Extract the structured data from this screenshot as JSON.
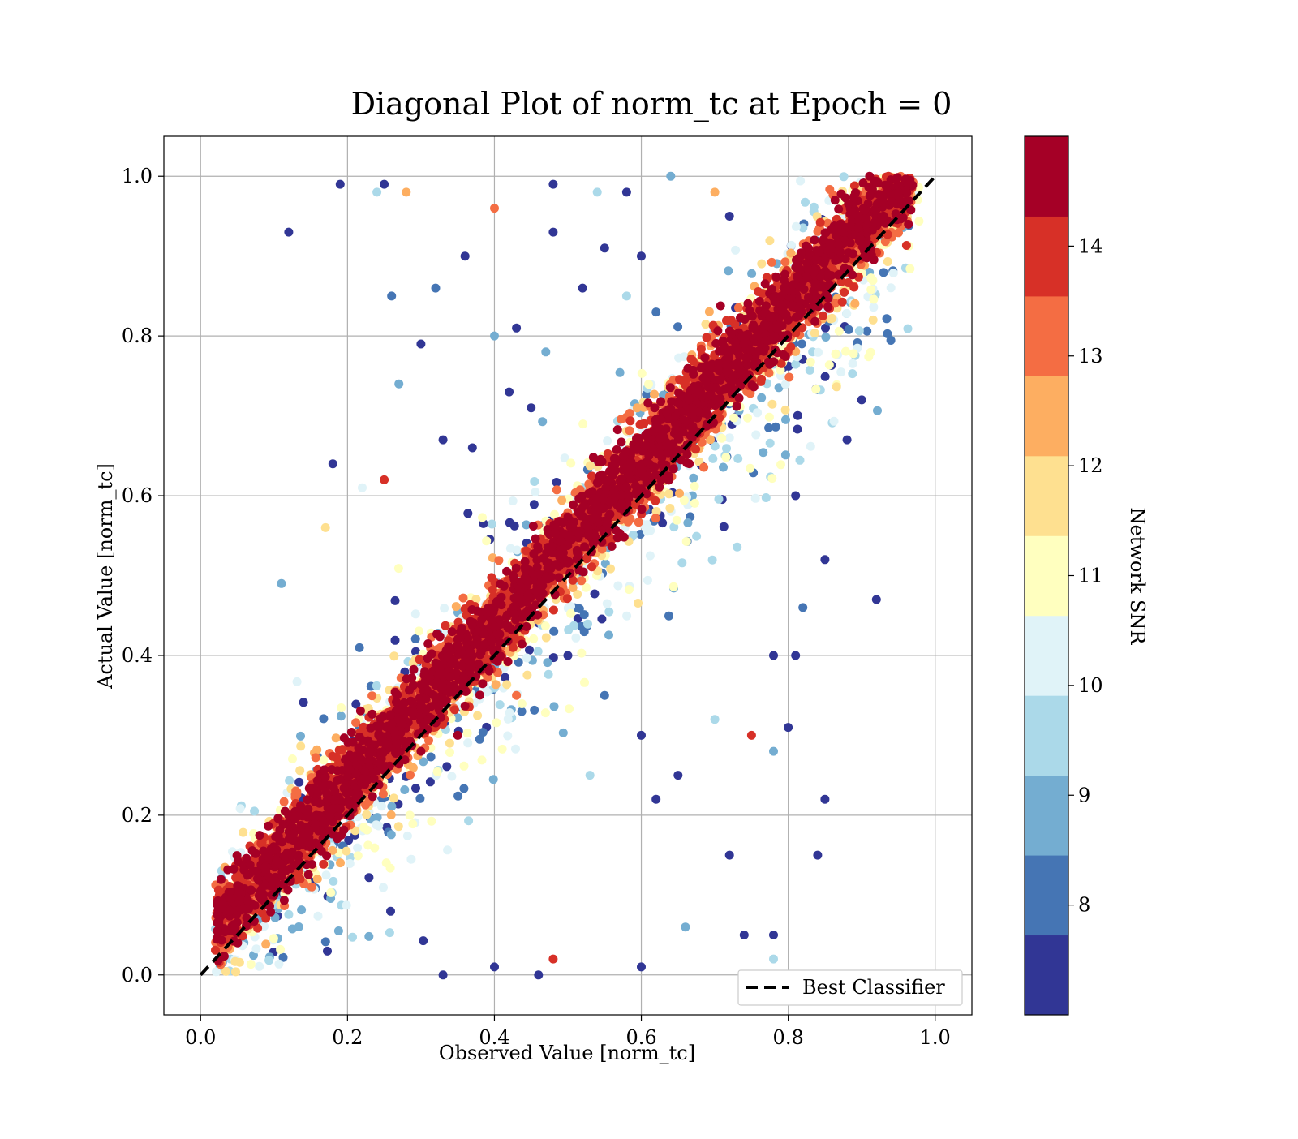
{
  "chart_data": {
    "type": "scatter",
    "title": "Diagonal Plot of norm_tc at Epoch = 0",
    "xlabel": "Observed Value [norm_tc]",
    "ylabel": "Actual Value [norm_tc]",
    "xlim": [
      -0.05,
      1.05
    ],
    "ylim": [
      -0.05,
      1.05
    ],
    "xticks": [
      "0.0",
      "0.2",
      "0.4",
      "0.6",
      "0.8",
      "1.0"
    ],
    "yticks": [
      "0.0",
      "0.2",
      "0.4",
      "0.6",
      "0.8",
      "1.0"
    ],
    "grid": true,
    "colorbar": {
      "label": "Network SNR",
      "range": [
        7,
        15
      ],
      "ticks": [
        "8",
        "9",
        "10",
        "11",
        "12",
        "13",
        "14"
      ],
      "colors": [
        "#313695",
        "#4575b4",
        "#74add1",
        "#abd9e9",
        "#e0f3f8",
        "#ffffbf",
        "#fee090",
        "#fdae61",
        "#f46d43",
        "#d73027",
        "#a50026"
      ]
    },
    "reference_line": {
      "label": "Best Classifier",
      "x": [
        0,
        1
      ],
      "y": [
        0,
        1
      ],
      "style": "dashed",
      "color": "#000000"
    },
    "legend": {
      "position": "lower-right",
      "entries": [
        "Best Classifier"
      ]
    },
    "series": [
      {
        "description_points": "sampled representative points [observed, actual, snr]",
        "points": [
          [
            0.12,
            0.93,
            7.2
          ],
          [
            0.19,
            0.99,
            7.3
          ],
          [
            0.25,
            0.99,
            7.4
          ],
          [
            0.24,
            0.98,
            9.5
          ],
          [
            0.28,
            0.98,
            12.5
          ],
          [
            0.4,
            0.96,
            13.5
          ],
          [
            0.48,
            0.99,
            7.3
          ],
          [
            0.36,
            0.9,
            7.2
          ],
          [
            0.32,
            0.86,
            8.0
          ],
          [
            0.26,
            0.85,
            8.0
          ],
          [
            0.3,
            0.79,
            7.4
          ],
          [
            0.27,
            0.74,
            8.5
          ],
          [
            0.4,
            0.8,
            8.5
          ],
          [
            0.43,
            0.81,
            7.3
          ],
          [
            0.48,
            0.93,
            7.2
          ],
          [
            0.18,
            0.64,
            7.3
          ],
          [
            0.25,
            0.62,
            13.8
          ],
          [
            0.11,
            0.49,
            8.5
          ],
          [
            0.17,
            0.56,
            12.0
          ],
          [
            0.22,
            0.61,
            10.0
          ],
          [
            0.33,
            0.67,
            7.5
          ],
          [
            0.37,
            0.66,
            7.2
          ],
          [
            0.42,
            0.73,
            7.4
          ],
          [
            0.45,
            0.71,
            7.3
          ],
          [
            0.47,
            0.78,
            8.8
          ],
          [
            0.54,
            0.98,
            9.5
          ],
          [
            0.58,
            0.98,
            7.3
          ],
          [
            0.64,
            1.0,
            8.5
          ],
          [
            0.7,
            0.98,
            12.5
          ],
          [
            0.72,
            0.95,
            7.3
          ],
          [
            0.55,
            0.91,
            7.3
          ],
          [
            0.6,
            0.9,
            7.3
          ],
          [
            0.62,
            0.83,
            8.0
          ],
          [
            0.58,
            0.85,
            9.5
          ],
          [
            0.52,
            0.86,
            7.4
          ],
          [
            0.92,
            0.47,
            7.3
          ],
          [
            0.85,
            0.52,
            7.2
          ],
          [
            0.81,
            0.6,
            7.4
          ],
          [
            0.88,
            0.67,
            7.3
          ],
          [
            0.9,
            0.72,
            7.3
          ],
          [
            0.85,
            0.22,
            7.2
          ],
          [
            0.84,
            0.15,
            7.3
          ],
          [
            0.8,
            0.31,
            7.4
          ],
          [
            0.78,
            0.28,
            8.5
          ],
          [
            0.75,
            0.3,
            13.8
          ],
          [
            0.81,
            0.4,
            7.4
          ],
          [
            0.78,
            0.4,
            7.3
          ],
          [
            0.82,
            0.46,
            8.0
          ],
          [
            0.7,
            0.32,
            9.5
          ],
          [
            0.72,
            0.15,
            7.3
          ],
          [
            0.74,
            0.05,
            7.3
          ],
          [
            0.78,
            0.05,
            7.2
          ],
          [
            0.78,
            0.02,
            9.5
          ],
          [
            0.66,
            0.06,
            9.0
          ],
          [
            0.6,
            0.01,
            7.3
          ],
          [
            0.48,
            0.02,
            13.8
          ],
          [
            0.46,
            0.0,
            7.2
          ],
          [
            0.4,
            0.01,
            7.3
          ],
          [
            0.33,
            0.0,
            7.4
          ],
          [
            0.5,
            0.4,
            7.3
          ],
          [
            0.55,
            0.35,
            8.0
          ],
          [
            0.6,
            0.3,
            7.3
          ],
          [
            0.65,
            0.25,
            7.4
          ],
          [
            0.62,
            0.22,
            7.2
          ],
          [
            0.53,
            0.25,
            9.5
          ],
          [
            0.43,
            0.35,
            13.2
          ],
          [
            0.5,
            0.55,
            13.5
          ],
          [
            0.55,
            0.62,
            14.5
          ],
          [
            0.65,
            0.7,
            14.5
          ],
          [
            0.72,
            0.75,
            14.5
          ],
          [
            0.35,
            0.3,
            14.5
          ],
          [
            0.3,
            0.28,
            14.5
          ],
          [
            0.2,
            0.2,
            14.5
          ],
          [
            0.1,
            0.1,
            14.5
          ],
          [
            0.05,
            0.08,
            14.5
          ],
          [
            0.9,
            0.92,
            14.5
          ],
          [
            0.95,
            0.97,
            14.5
          ],
          [
            0.85,
            0.85,
            14.5
          ],
          [
            0.8,
            0.82,
            14.5
          ],
          [
            0.75,
            0.78,
            14.5
          ]
        ]
      }
    ]
  }
}
